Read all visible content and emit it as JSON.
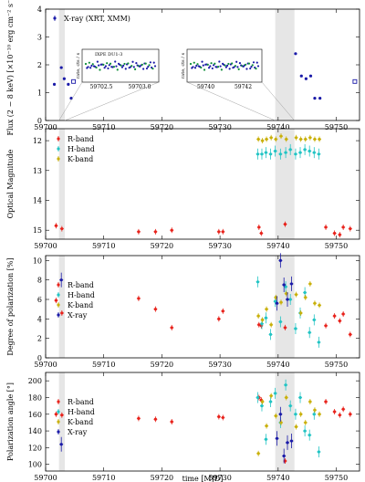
{
  "chart_data": [
    {
      "type": "scatter",
      "ylabel": "Flux (2 − 8 keV) [×10⁻¹⁰ erg cm⁻² s⁻¹]",
      "ylim": [
        0,
        4
      ],
      "yticks": [
        0,
        1,
        2,
        3,
        4
      ],
      "xlim": [
        59700,
        59754
      ],
      "shaded": [
        [
          59702.3,
          59703.3
        ],
        [
          59739.5,
          59742.8
        ]
      ],
      "legend": [
        "X-ray (XRT, XMM)"
      ],
      "series": [
        {
          "name": "X-ray (XRT, XMM)",
          "marker": "dot",
          "color": "#1a1aa8",
          "x": [
            59701.5,
            59702.7,
            59703.2,
            59703.9,
            59704.4,
            59743.0,
            59744.0,
            59744.8,
            59745.6,
            59746.3,
            59747.2
          ],
          "y": [
            1.3,
            1.9,
            1.5,
            1.3,
            0.8,
            2.4,
            1.6,
            1.5,
            1.6,
            0.8,
            0.8
          ]
        },
        {
          "name": "XMM",
          "marker": "open-square",
          "color": "#1a1aa8",
          "x": [
            59704.8,
            59753.2
          ],
          "y": [
            1.4,
            1.4
          ]
        }
      ],
      "insets": [
        {
          "xlim": [
            59702.3,
            59703.3
          ],
          "xticks": [
            "59702.5",
            "59703.0"
          ],
          "ylabel": "rate, cts / s",
          "legend": "IXPE DU1-3",
          "level": 1.4
        },
        {
          "xlim": [
            59739.5,
            59742.8
          ],
          "xticks": [
            "59740",
            "59742"
          ],
          "ylabel": "rate, cts / s",
          "level": 1.4
        }
      ]
    },
    {
      "type": "scatter",
      "ylabel": "Optical Magnitude",
      "ylim": [
        15.3,
        11.6
      ],
      "yticks": [
        12,
        13,
        14,
        15
      ],
      "inverted": true,
      "xlim": [
        59700,
        59754
      ],
      "shaded": [
        [
          59702.3,
          59703.3
        ],
        [
          59739.5,
          59742.8
        ]
      ],
      "series": [
        {
          "name": "R-band",
          "color": "#e8221b",
          "x": [
            59701.8,
            59702.8,
            59716.0,
            59718.9,
            59721.7,
            59729.8,
            59730.5,
            59736.7,
            59737.1,
            59741.2,
            59748.2,
            59749.7,
            59750.6,
            59751.2,
            59752.4
          ],
          "y": [
            14.85,
            14.95,
            15.05,
            15.05,
            15.0,
            15.05,
            15.05,
            14.9,
            15.1,
            14.8,
            14.9,
            15.1,
            15.15,
            14.9,
            14.95
          ]
        },
        {
          "name": "H-band",
          "color": "#22c4c4",
          "x": [
            59736.5,
            59737.2,
            59737.9,
            59738.7,
            59739.5,
            59740.4,
            59741.3,
            59742.1,
            59743.0,
            59743.8,
            59744.6,
            59745.4,
            59746.2,
            59747.0
          ],
          "y": [
            12.45,
            12.45,
            12.4,
            12.45,
            12.35,
            12.45,
            12.4,
            12.3,
            12.45,
            12.4,
            12.3,
            12.35,
            12.4,
            12.45
          ]
        },
        {
          "name": "K-band",
          "color": "#c9b00a",
          "x": [
            59736.6,
            59737.3,
            59738.0,
            59738.8,
            59739.6,
            59740.5,
            59741.4,
            59743.1,
            59743.9,
            59744.7,
            59745.5,
            59746.3,
            59747.1
          ],
          "y": [
            11.95,
            12.0,
            11.95,
            11.9,
            11.95,
            11.85,
            11.95,
            11.9,
            11.95,
            11.95,
            11.9,
            11.95,
            11.95
          ]
        }
      ],
      "legend": [
        "R-band",
        "H-band",
        "K-band"
      ]
    },
    {
      "type": "scatter",
      "ylabel": "Degree of polarization [%]",
      "ylim": [
        0,
        10.5
      ],
      "yticks": [
        0,
        2,
        4,
        6,
        8,
        10
      ],
      "xlim": [
        59700,
        59754
      ],
      "shaded": [
        [
          59702.3,
          59703.3
        ],
        [
          59739.5,
          59742.8
        ]
      ],
      "series": [
        {
          "name": "R-band",
          "color": "#e8221b",
          "x": [
            59701.8,
            59702.8,
            59716.0,
            59718.9,
            59721.7,
            59729.8,
            59730.5,
            59736.7,
            59737.1,
            59741.2,
            59748.2,
            59749.7,
            59750.6,
            59751.2,
            59752.4
          ],
          "y": [
            5.9,
            4.6,
            6.1,
            5.0,
            3.1,
            4.0,
            4.8,
            3.4,
            3.3,
            3.1,
            3.3,
            4.3,
            3.8,
            4.5,
            2.4
          ]
        },
        {
          "name": "H-band",
          "color": "#22c4c4",
          "x": [
            59736.5,
            59737.2,
            59737.9,
            59738.7,
            59739.5,
            59740.4,
            59741.3,
            59742.1,
            59743.0,
            59743.8,
            59744.6,
            59745.4,
            59746.2,
            59747.0
          ],
          "y": [
            7.8,
            3.5,
            4.1,
            2.4,
            5.8,
            3.7,
            7.3,
            6.0,
            3.0,
            4.6,
            6.7,
            2.6,
            3.9,
            1.6
          ]
        },
        {
          "name": "K-band",
          "color": "#c9b00a",
          "x": [
            59736.6,
            59737.3,
            59738.0,
            59738.8,
            59739.6,
            59740.5,
            59741.4,
            59743.1,
            59743.9,
            59744.7,
            59745.5,
            59746.3,
            59747.1
          ],
          "y": [
            4.3,
            3.9,
            5.0,
            3.4,
            6.2,
            5.7,
            6.6,
            6.5,
            4.6,
            6.2,
            7.6,
            5.6,
            5.4
          ]
        },
        {
          "name": "X-ray",
          "color": "#1a1aa8",
          "x": [
            59702.7,
            59739.8,
            59740.4,
            59741.0,
            59741.6,
            59742.3
          ],
          "y": [
            8.0,
            5.6,
            10.0,
            7.5,
            6.0,
            7.6
          ]
        }
      ],
      "legend": [
        "R-band",
        "H-band",
        "K-band",
        "X-ray"
      ]
    },
    {
      "type": "scatter",
      "ylabel": "Polarization angle [°]",
      "xlabel": "time [MJD]",
      "ylim": [
        92,
        210
      ],
      "yticks": [
        100,
        120,
        140,
        160,
        180,
        200
      ],
      "xlim": [
        59700,
        59754
      ],
      "xticks": [
        59700,
        59710,
        59720,
        59730,
        59740,
        59750
      ],
      "shaded": [
        [
          59702.3,
          59703.3
        ],
        [
          59739.5,
          59742.8
        ]
      ],
      "series": [
        {
          "name": "R-band",
          "color": "#e8221b",
          "x": [
            59701.8,
            59702.8,
            59716.0,
            59718.9,
            59721.7,
            59729.8,
            59730.5,
            59736.7,
            59737.1,
            59741.2,
            59748.2,
            59749.7,
            59750.6,
            59751.2,
            59752.4
          ],
          "y": [
            160,
            159,
            155,
            154,
            151,
            157,
            156,
            180,
            177,
            104,
            175,
            163,
            159,
            166,
            160
          ]
        },
        {
          "name": "H-band",
          "color": "#22c4c4",
          "x": [
            59736.5,
            59737.2,
            59737.9,
            59738.7,
            59739.5,
            59740.4,
            59741.3,
            59742.1,
            59743.0,
            59743.8,
            59744.6,
            59745.4,
            59746.2,
            59747.0
          ],
          "y": [
            180,
            170,
            130,
            175,
            185,
            150,
            195,
            170,
            160,
            180,
            140,
            135,
            160,
            115
          ]
        },
        {
          "name": "K-band",
          "color": "#c9b00a",
          "x": [
            59736.6,
            59737.3,
            59738.0,
            59738.8,
            59739.6,
            59740.5,
            59741.4,
            59743.1,
            59743.9,
            59744.7,
            59745.5,
            59746.3,
            59747.1
          ],
          "y": [
            113,
            175,
            146,
            182,
            158,
            150,
            180,
            145,
            160,
            150,
            175,
            165,
            160
          ]
        },
        {
          "name": "X-ray",
          "color": "#1a1aa8",
          "x": [
            59702.7,
            59739.8,
            59740.4,
            59741.0,
            59741.6,
            59742.3
          ],
          "y": [
            124,
            131,
            160,
            110,
            126,
            128
          ]
        }
      ],
      "legend": [
        "R-band",
        "H-band",
        "K-band",
        "X-ray"
      ]
    }
  ]
}
